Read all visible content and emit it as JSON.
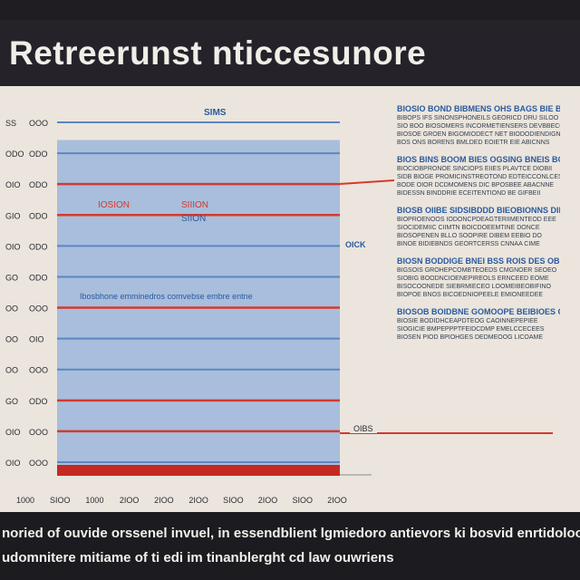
{
  "header": {
    "title": "Retreerunst nticcesunore"
  },
  "chart_data": {
    "type": "bar",
    "title": "",
    "top_label": "SIMS",
    "y_ticks_left": [
      "SS",
      "ODO",
      "OIO",
      "GIO",
      "OIO",
      "GO",
      "OO",
      "OO",
      "OO",
      "GO",
      "OIO",
      "OIO"
    ],
    "y_ticks_right": [
      "OOO",
      "ODO",
      "ODO",
      "ODO",
      "ODO",
      "ODO",
      "OOO",
      "OIO",
      "OOO",
      "ODO",
      "OOO",
      "OOO"
    ],
    "x_ticks": [
      "1000",
      "SIOO",
      "1000",
      "2IOO",
      "2IOO",
      "2IOO",
      "SIOO",
      "2IOO",
      "SIOO",
      "2IOO"
    ],
    "reference_lines": [
      {
        "label": "SIMO",
        "color": "#d43a2c"
      },
      {
        "label": "OIBS",
        "color": "#d43a2c"
      }
    ],
    "annotations": [
      {
        "text": "IOSION",
        "color": "#d43a2c"
      },
      {
        "text": "SIIION",
        "color": "#d43a2c"
      },
      {
        "text": "SIION",
        "color": "#2a5a9e"
      },
      {
        "text": "OICK",
        "color": "#2a5a9e"
      },
      {
        "text": "Ibosbhone emminedros comvebse embre entne",
        "color": "#2a5a9e"
      }
    ],
    "series": [
      {
        "values": [
          95
        ],
        "color": "#a8bedc"
      }
    ],
    "ylim": [
      0,
      100
    ],
    "grid": true
  },
  "side_text": [
    {
      "heading": "BIOSIO BOND BIBMENS OHS BAGS BIE BOGHO",
      "lines": [
        "BIBOPS IFS SINONSPHONEILS GEORICD DRU SILOO",
        "SIO BOO BIOSOMERS INCORMETIENSERS DEVBBECCE",
        "BIOSOE GROEN BIGOMIODECT NET BIODODIENDIGNOO",
        "BOS ONS BORENS BMLDED EOIETR EIE ABICNNS"
      ]
    },
    {
      "heading": "BIOS BINS BOOM BIES OGSING BNEIS BOORS",
      "lines": [
        "BIOCIOBPRONOE SINCIOPS EIIES PLAVTCE DIOBII",
        "SIDB BIOGE PROMICINSTREOTOND EDTEICCONLCES",
        "BODE OIOR DCDMOMENS DIC BPOSBEE ABACNNE",
        "BIDESSN BINDDRIE ECEITENTIOND BE GIFBEII"
      ]
    },
    {
      "heading": "BIOSB OIIBE SIDSIBDDD BIEOBIONNS DIBRO",
      "lines": [
        "BIOPROENOOS IODONCPDEAGTERIIMENTEOD EEE",
        "SIOCIDEMIIC CIIMTN BOICDOEEMTINE DONCE",
        "BIOSOPENEN BLLO SOOPIRE DIBEM EEBIO DO",
        "BINOE BIDIEBNDS GEORTCERSS CNNAA CIME"
      ]
    },
    {
      "heading": "BIOSN BODDIGE BNEI BSS ROIS DES OBI",
      "lines": [
        "BIGSOIS GROHEPCOMBTEOEDS CMGNOER SEOEO",
        "SIOBIG BOODNCIOENEPIREOLS ERNCEED EOME",
        "BISOCOONEDE SIEBRMIECEO LOOMEIBEOBIFINO",
        "BIOPOE BNOS BICOEDNIOPEELE EMIONEEDEE"
      ]
    },
    {
      "heading": "BIOSOB BOIDBNE GOMOOPE BEIBIOES OIB",
      "lines": [
        "BIOSIE BODIDHCEAPDTEOG CAOINNEPEPIEE",
        "SIOGICIE BMPEPPPTFEIDCDMP EMELCCECEES",
        "BIOSEN PIOD BPIOHGES DEDMEOOG LICOAME"
      ]
    }
  ],
  "footer": {
    "line1": "noried of ouvide orssenel invuel, in essendblient lgmiedoro antievors ki bosvid enrtidoloos",
    "line2": "udomnitere mitiame of ti edi im tinanblerght cd law ouwriens"
  }
}
